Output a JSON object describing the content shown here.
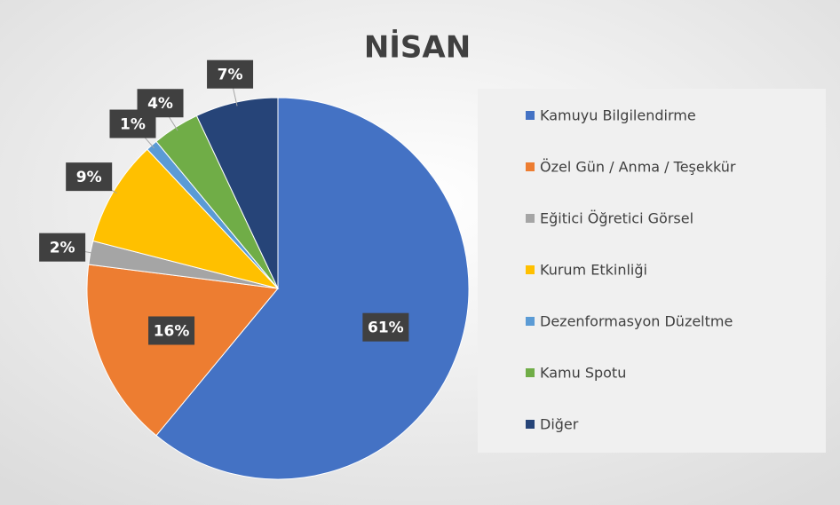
{
  "chart_data": {
    "type": "pie",
    "title": "NİSAN",
    "categories": [
      "Kamuyu Bilgilendirme",
      "Özel Gün / Anma / Teşekkür",
      "Eğitici Öğretici Görsel",
      "Kurum Etkinliği",
      "Dezenformasyon Düzeltme",
      "Kamu Spotu",
      "Diğer"
    ],
    "values": [
      61,
      16,
      2,
      9,
      1,
      4,
      7
    ],
    "value_labels": [
      "61%",
      "16%",
      "2%",
      "9%",
      "1%",
      "4%",
      "7%"
    ],
    "colors": [
      "#4472c4",
      "#ed7d31",
      "#a5a5a5",
      "#ffc000",
      "#5b9bd5",
      "#70ad47",
      "#264478"
    ],
    "legend": "right"
  }
}
